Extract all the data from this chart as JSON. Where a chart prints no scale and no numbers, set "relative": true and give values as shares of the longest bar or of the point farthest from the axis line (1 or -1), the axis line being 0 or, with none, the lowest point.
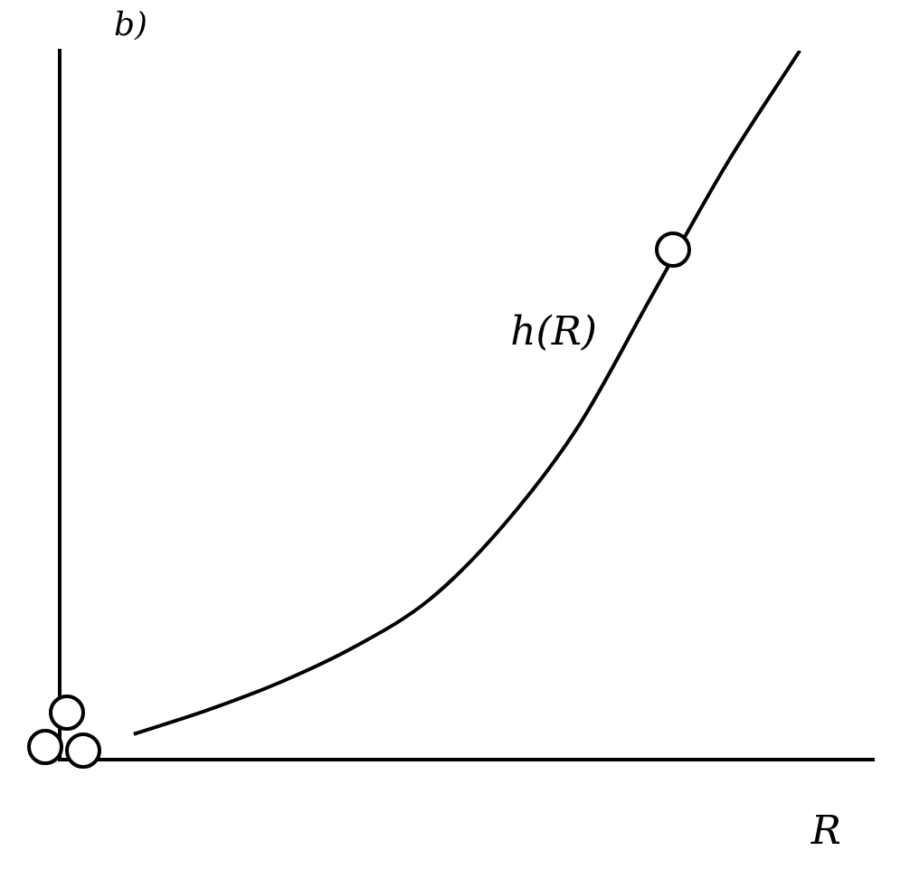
{
  "chart_data": {
    "type": "line",
    "title": "b)",
    "xlabel": "R",
    "relative": true,
    "grid": false,
    "legend": false,
    "marker": "none",
    "line_style": "solid",
    "categories": [
      null,
      null,
      null,
      null,
      null,
      null,
      null,
      null,
      null,
      null,
      null,
      null
    ],
    "series": [
      {
        "color": "#000000",
        "values": [
          null,
          0.036,
          0.07,
          0.11,
          0.16,
          0.226,
          0.331,
          0.469,
          0.654,
          0.838,
          1.0,
          null
        ]
      }
    ],
    "annotations": [
      "h(R)"
    ]
  }
}
